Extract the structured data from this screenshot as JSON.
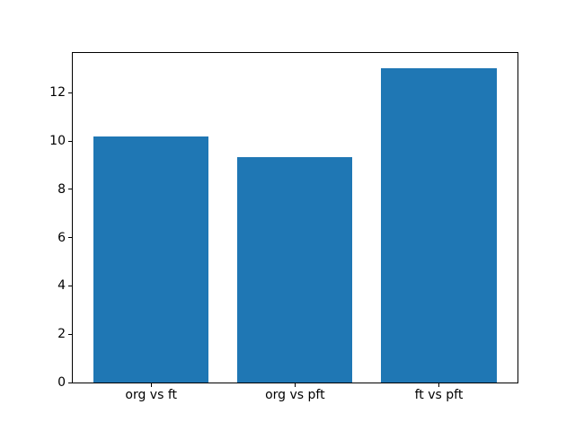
{
  "chart_data": {
    "type": "bar",
    "title": "",
    "xlabel": "",
    "ylabel": "",
    "categories": [
      "org vs ft",
      "org vs pft",
      "ft vs pft"
    ],
    "values": [
      10.2,
      9.35,
      13.0
    ],
    "ylim": [
      0,
      13.65
    ],
    "yticks": [
      0,
      2,
      4,
      6,
      8,
      10,
      12
    ],
    "bar_color": "#1f77b4",
    "grid": false,
    "legend": "none",
    "background_color": "#ffffff",
    "spine_color": "#000000"
  }
}
